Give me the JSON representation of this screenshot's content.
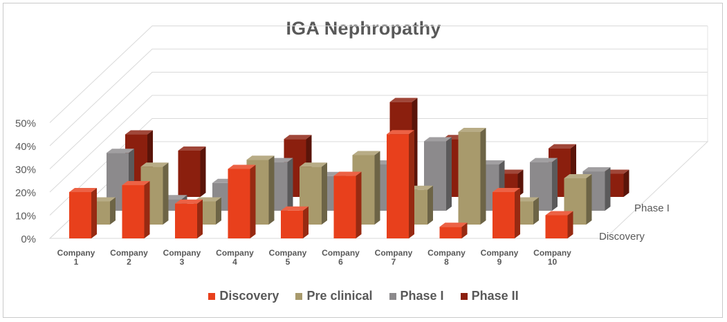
{
  "chart_data": {
    "type": "bar",
    "title": "IGA Nephropathy",
    "categories": [
      [
        "Company",
        "1"
      ],
      [
        "Company",
        "2"
      ],
      [
        "Company",
        "3"
      ],
      [
        "Company",
        "4"
      ],
      [
        "Company",
        "5"
      ],
      [
        "Company",
        "6"
      ],
      [
        "Company",
        "7"
      ],
      [
        "Company",
        "8"
      ],
      [
        "Company",
        "9"
      ],
      [
        "Company",
        "10"
      ]
    ],
    "series": [
      {
        "name": "Discovery",
        "color": "#e8401c",
        "values": [
          20,
          23,
          15,
          30,
          12,
          27,
          45,
          5,
          20,
          10
        ]
      },
      {
        "name": "Pre clinical",
        "color": "#a89a6c",
        "values": [
          10,
          25,
          10,
          28,
          25,
          30,
          15,
          40,
          10,
          20
        ]
      },
      {
        "name": "Phase I",
        "color": "#8c8a8c",
        "values": [
          25,
          5,
          12,
          21,
          15,
          20,
          30,
          20,
          21,
          17
        ]
      },
      {
        "name": "Phase II",
        "color": "#8b1f0e",
        "values": [
          27,
          20,
          12,
          25,
          3,
          41,
          25,
          10,
          21,
          10
        ]
      }
    ],
    "depth_labels": [
      "Discovery",
      "Phase I"
    ],
    "ytick_labels": [
      "0%",
      "10%",
      "20%",
      "30%",
      "40%",
      "50%"
    ],
    "ylim": [
      0,
      50
    ],
    "grid": true,
    "legend_position": "bottom"
  }
}
